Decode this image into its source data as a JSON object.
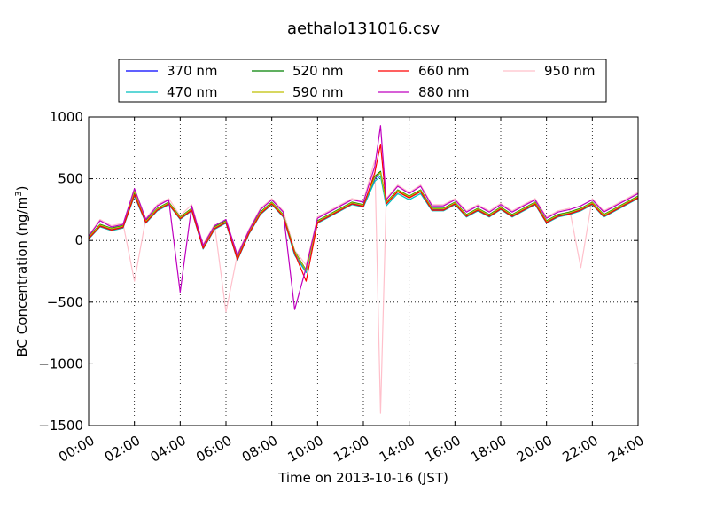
{
  "chart_data": {
    "type": "line",
    "title": "aethalo131016.csv",
    "xlabel": "Time on 2013-10-16 (JST)",
    "ylabel": "BC Concentration (ng/m",
    "ylabel_sup": "3",
    "ylabel_end": ")",
    "xlim": [
      "00:00",
      "24:00"
    ],
    "ylim": [
      -1500,
      1000
    ],
    "grid": true,
    "legend_position": "top, above plot",
    "x_tick_labels": [
      "00:00",
      "02:00",
      "04:00",
      "06:00",
      "08:00",
      "10:00",
      "12:00",
      "14:00",
      "16:00",
      "18:00",
      "20:00",
      "22:00",
      "24:00"
    ],
    "y_ticks": [
      -1500,
      -1000,
      -500,
      0,
      500,
      1000
    ],
    "y_tick_labels": [
      "−1500",
      "−1000",
      "−500",
      "0",
      "500",
      "1000"
    ],
    "x_hours": [
      0,
      0.5,
      1,
      1.5,
      2,
      2.5,
      3,
      3.5,
      4,
      4.5,
      5,
      5.5,
      6,
      6.5,
      7,
      7.5,
      8,
      8.5,
      9,
      9.5,
      10,
      10.5,
      11,
      11.5,
      12,
      12.5,
      12.75,
      13,
      13.5,
      14,
      14.5,
      15,
      15.5,
      16,
      16.5,
      17,
      17.5,
      18,
      18.5,
      19,
      19.5,
      20,
      20.5,
      21,
      21.5,
      22,
      22.5,
      23,
      23.5,
      24
    ],
    "series": [
      {
        "name": "370 nm",
        "color": "#0000ff",
        "values": [
          20,
          120,
          90,
          110,
          380,
          150,
          250,
          300,
          180,
          250,
          -60,
          100,
          150,
          -150,
          60,
          220,
          300,
          200,
          -100,
          -250,
          150,
          200,
          250,
          300,
          280,
          500,
          550,
          300,
          400,
          350,
          400,
          250,
          250,
          300,
          200,
          250,
          200,
          260,
          200,
          250,
          300,
          150,
          200,
          220,
          250,
          300,
          200,
          250,
          300,
          350
        ]
      },
      {
        "name": "470 nm",
        "color": "#00bfbf",
        "values": [
          10,
          110,
          80,
          100,
          360,
          140,
          240,
          290,
          170,
          240,
          -70,
          90,
          140,
          -160,
          50,
          210,
          290,
          190,
          -120,
          -260,
          140,
          190,
          240,
          290,
          270,
          480,
          520,
          280,
          380,
          330,
          380,
          240,
          240,
          290,
          190,
          240,
          190,
          250,
          190,
          240,
          290,
          140,
          190,
          210,
          240,
          290,
          190,
          240,
          290,
          340
        ]
      },
      {
        "name": "520 nm",
        "color": "#008000",
        "values": [
          30,
          130,
          100,
          120,
          390,
          160,
          260,
          310,
          190,
          260,
          -50,
          110,
          160,
          -140,
          70,
          230,
          310,
          210,
          -90,
          -240,
          160,
          210,
          260,
          310,
          290,
          520,
          560,
          310,
          410,
          360,
          410,
          260,
          260,
          310,
          210,
          260,
          210,
          270,
          210,
          260,
          310,
          160,
          210,
          230,
          260,
          310,
          210,
          260,
          310,
          360
        ]
      },
      {
        "name": "590 nm",
        "color": "#bfbf00",
        "values": [
          25,
          125,
          95,
          115,
          400,
          155,
          255,
          305,
          185,
          255,
          -55,
          105,
          155,
          -145,
          65,
          225,
          305,
          205,
          -95,
          -245,
          155,
          205,
          255,
          305,
          285,
          510,
          550,
          305,
          405,
          355,
          405,
          255,
          255,
          305,
          205,
          255,
          205,
          265,
          205,
          255,
          305,
          155,
          205,
          225,
          255,
          305,
          205,
          255,
          305,
          355
        ]
      },
      {
        "name": "660 nm",
        "color": "#ff0000",
        "values": [
          15,
          115,
          85,
          105,
          370,
          145,
          245,
          295,
          175,
          245,
          -65,
          95,
          145,
          -155,
          55,
          215,
          295,
          195,
          -105,
          -330,
          145,
          195,
          245,
          295,
          275,
          550,
          780,
          295,
          395,
          345,
          395,
          245,
          245,
          295,
          195,
          245,
          195,
          255,
          195,
          245,
          295,
          145,
          195,
          215,
          245,
          295,
          195,
          245,
          295,
          345
        ]
      },
      {
        "name": "880 nm",
        "color": "#bf00bf",
        "values": [
          35,
          160,
          110,
          130,
          420,
          170,
          280,
          330,
          -420,
          280,
          -40,
          120,
          170,
          -120,
          80,
          250,
          330,
          230,
          -560,
          -220,
          180,
          230,
          280,
          330,
          310,
          600,
          930,
          330,
          440,
          380,
          440,
          280,
          280,
          330,
          230,
          280,
          230,
          290,
          230,
          280,
          330,
          180,
          230,
          250,
          280,
          330,
          230,
          280,
          330,
          380
        ]
      },
      {
        "name": "950 nm",
        "color": "#ffc0cb",
        "values": [
          40,
          170,
          120,
          140,
          -330,
          180,
          290,
          340,
          200,
          290,
          -30,
          130,
          -580,
          -110,
          90,
          260,
          340,
          240,
          -80,
          -200,
          190,
          240,
          290,
          340,
          320,
          650,
          -1400,
          340,
          450,
          390,
          450,
          290,
          290,
          340,
          240,
          290,
          240,
          300,
          240,
          290,
          340,
          190,
          240,
          260,
          -220,
          340,
          240,
          290,
          340,
          390
        ]
      }
    ]
  }
}
